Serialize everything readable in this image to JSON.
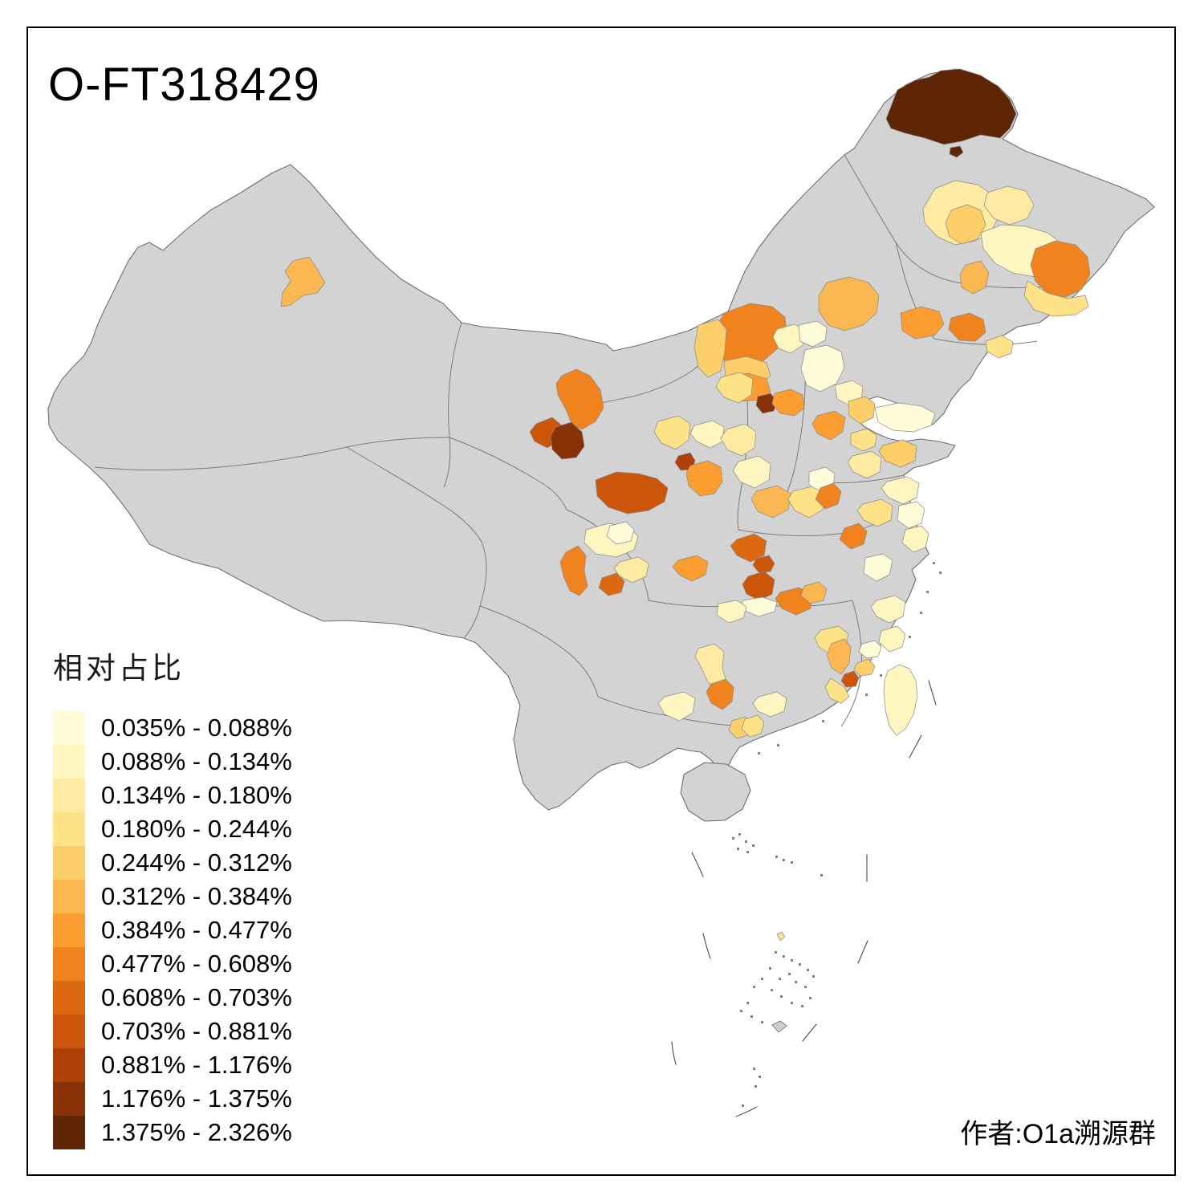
{
  "title": "O-FT318429",
  "legend": {
    "title": "相对占比",
    "classes": [
      {
        "range": "0.035% - 0.088%",
        "color": "#FFFCD9"
      },
      {
        "range": "0.088% - 0.134%",
        "color": "#FFF5C0"
      },
      {
        "range": "0.134% - 0.180%",
        "color": "#FEEBA3"
      },
      {
        "range": "0.180% - 0.244%",
        "color": "#FDE288"
      },
      {
        "range": "0.244% - 0.312%",
        "color": "#FDCF6B"
      },
      {
        "range": "0.312% - 0.384%",
        "color": "#FBB751"
      },
      {
        "range": "0.384% - 0.477%",
        "color": "#FB9D30"
      },
      {
        "range": "0.477% - 0.608%",
        "color": "#F0831E"
      },
      {
        "range": "0.608% - 0.703%",
        "color": "#DC6910"
      },
      {
        "range": "0.703% - 0.881%",
        "color": "#CB550B"
      },
      {
        "range": "0.881% - 1.176%",
        "color": "#AF4008"
      },
      {
        "range": "1.176% - 1.375%",
        "color": "#8A3207"
      },
      {
        "range": "1.375% - 2.326%",
        "color": "#5E2506"
      }
    ]
  },
  "map": {
    "no_data_color": "#D3D3D3",
    "boundary_color": "#6e6e6e",
    "background_color": "#FFFFFF"
  },
  "attribution": "作者:O1a溯源群"
}
